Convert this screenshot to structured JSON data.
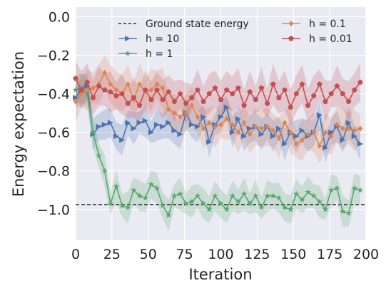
{
  "chart_data": {
    "type": "line",
    "xlabel": "Iteration",
    "ylabel": "Energy expectation",
    "xlim": [
      0,
      200
    ],
    "ylim": [
      -1.16,
      0.05
    ],
    "xticks": [
      0,
      25,
      50,
      75,
      100,
      125,
      150,
      175,
      200
    ],
    "xtick_labels": [
      "0",
      "25",
      "50",
      "75",
      "100",
      "125",
      "150",
      "175",
      "200"
    ],
    "yticks": [
      0.0,
      -0.2,
      -0.4,
      -0.6,
      -0.8,
      -1.0
    ],
    "ytick_labels": [
      "0.0",
      "−0.2",
      "−0.4",
      "−0.6",
      "−0.8",
      "−1.0"
    ],
    "grid": true,
    "legend_position": "top",
    "ground_state": {
      "label": "Ground state energy",
      "value": -0.975,
      "color": "#000000"
    },
    "x": [
      0,
      4,
      8,
      12,
      16,
      20,
      24,
      28,
      32,
      36,
      40,
      44,
      48,
      52,
      56,
      60,
      64,
      68,
      72,
      76,
      80,
      84,
      88,
      92,
      96,
      100,
      104,
      108,
      112,
      116,
      120,
      124,
      128,
      132,
      136,
      140,
      144,
      148,
      152,
      156,
      160,
      164,
      168,
      172,
      176,
      180,
      184,
      188,
      192,
      196
    ],
    "series": [
      {
        "name": "h = 10",
        "color": "#4c72b0",
        "marker": "triangle-right",
        "values": [
          -0.42,
          -0.38,
          -0.36,
          -0.61,
          -0.57,
          -0.56,
          -0.55,
          -0.62,
          -0.64,
          -0.55,
          -0.58,
          -0.55,
          -0.54,
          -0.6,
          -0.56,
          -0.57,
          -0.55,
          -0.59,
          -0.61,
          -0.5,
          -0.56,
          -0.57,
          -0.52,
          -0.65,
          -0.56,
          -0.52,
          -0.47,
          -0.6,
          -0.53,
          -0.62,
          -0.58,
          -0.57,
          -0.61,
          -0.57,
          -0.62,
          -0.58,
          -0.66,
          -0.6,
          -0.62,
          -0.59,
          -0.62,
          -0.6,
          -0.51,
          -0.68,
          -0.6,
          -0.57,
          -0.64,
          -0.55,
          -0.62,
          -0.66
        ],
        "band": 0.07
      },
      {
        "name": "h = 1",
        "color": "#55a868",
        "marker": "star",
        "values": [
          -0.38,
          -0.37,
          -0.4,
          -0.6,
          -0.72,
          -0.8,
          -0.97,
          -0.88,
          -0.98,
          -0.99,
          -0.9,
          -0.93,
          -0.94,
          -0.87,
          -0.89,
          -0.98,
          -1.03,
          -0.93,
          -0.92,
          -0.97,
          -0.96,
          -0.93,
          -0.97,
          -1.0,
          -0.93,
          -0.97,
          -1.0,
          -0.93,
          -0.96,
          -0.92,
          -0.97,
          -0.93,
          -0.99,
          -0.93,
          -0.93,
          -0.94,
          -0.99,
          -1.0,
          -0.92,
          -0.95,
          -0.91,
          -0.93,
          -0.96,
          -1.0,
          -0.9,
          -0.89,
          -1.01,
          -1.02,
          -0.89,
          -0.9
        ],
        "band": 0.07
      },
      {
        "name": "h = 0.1",
        "color": "#dd8452",
        "marker": "diamond",
        "values": [
          -0.44,
          -0.4,
          -0.38,
          -0.37,
          -0.35,
          -0.29,
          -0.35,
          -0.38,
          -0.4,
          -0.35,
          -0.43,
          -0.35,
          -0.39,
          -0.38,
          -0.35,
          -0.37,
          -0.48,
          -0.5,
          -0.52,
          -0.5,
          -0.46,
          -0.52,
          -0.58,
          -0.55,
          -0.57,
          -0.56,
          -0.53,
          -0.56,
          -0.6,
          -0.55,
          -0.61,
          -0.57,
          -0.58,
          -0.57,
          -0.59,
          -0.63,
          -0.55,
          -0.6,
          -0.66,
          -0.64,
          -0.61,
          -0.6,
          -0.67,
          -0.6,
          -0.62,
          -0.56,
          -0.58,
          -0.58,
          -0.59,
          -0.58
        ],
        "band": 0.09
      },
      {
        "name": "h = 0.01",
        "color": "#c44e52",
        "marker": "pentagon",
        "values": [
          -0.32,
          -0.38,
          -0.34,
          -0.42,
          -0.36,
          -0.38,
          -0.39,
          -0.41,
          -0.4,
          -0.45,
          -0.42,
          -0.46,
          -0.38,
          -0.43,
          -0.38,
          -0.43,
          -0.39,
          -0.44,
          -0.4,
          -0.45,
          -0.42,
          -0.38,
          -0.44,
          -0.4,
          -0.37,
          -0.43,
          -0.38,
          -0.4,
          -0.37,
          -0.46,
          -0.39,
          -0.43,
          -0.37,
          -0.45,
          -0.35,
          -0.42,
          -0.38,
          -0.47,
          -0.4,
          -0.35,
          -0.46,
          -0.41,
          -0.35,
          -0.44,
          -0.4,
          -0.36,
          -0.4,
          -0.44,
          -0.38,
          -0.34
        ],
        "band": 0.09
      }
    ]
  }
}
